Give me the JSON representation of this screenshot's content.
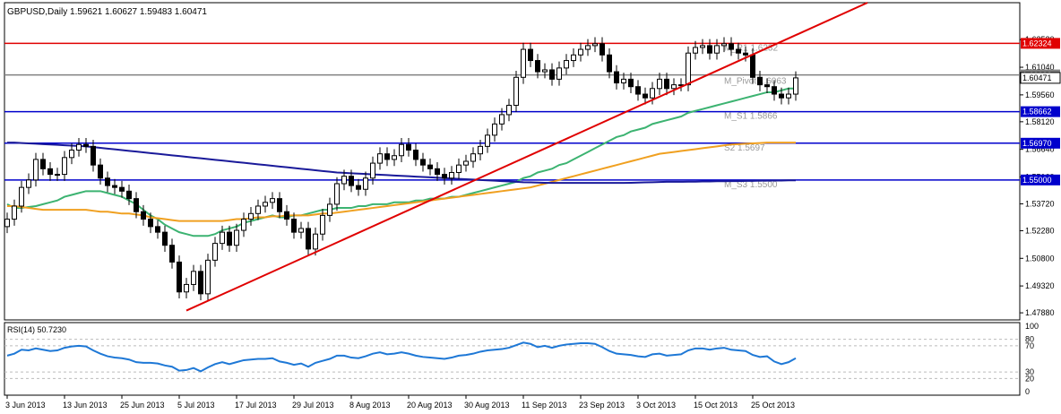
{
  "chart_data": {
    "type": "candlestick",
    "header": {
      "symbol": "GBPUSD,Daily",
      "open": "1.59621",
      "high": "1.60627",
      "low": "1.59483",
      "close": "1.60471"
    },
    "colors": {
      "bull_body": "#ffffff",
      "bear_body": "#000000",
      "wick": "#000000",
      "ma_green": "#3cb371",
      "ma_orange": "#f0a020",
      "ma_navy": "#1a1a9a",
      "trendline": "#e00000",
      "resistance": "#e00000",
      "support": "#0000cc",
      "pivot": "#808080",
      "rsi": "#1e78d6",
      "price_label_blue": "#0000cc",
      "price_label_red": "#e00000",
      "price_label_gray": "#808080"
    },
    "price_axis": {
      "ylim": [
        1.475,
        1.645
      ],
      "ticks": [
        "1.62520",
        "1.61040",
        "1.59560",
        "1.58120",
        "1.56640",
        "1.55160",
        "1.53720",
        "1.52280",
        "1.50800",
        "1.49320",
        "1.47880"
      ],
      "tick_values": [
        1.6252,
        1.6104,
        1.5956,
        1.5812,
        1.5664,
        1.5516,
        1.5372,
        1.5228,
        1.508,
        1.4932,
        1.4788
      ]
    },
    "date_labels": [
      {
        "label": "3 Jun 2013",
        "bar": 0
      },
      {
        "label": "13 Jun 2013",
        "bar": 8
      },
      {
        "label": "25 Jun 2013",
        "bar": 16
      },
      {
        "label": "5 Jul 2013",
        "bar": 24
      },
      {
        "label": "17 Jul 2013",
        "bar": 32
      },
      {
        "label": "29 Jul 2013",
        "bar": 40
      },
      {
        "label": "8 Aug 2013",
        "bar": 48
      },
      {
        "label": "20 Aug 2013",
        "bar": 56
      },
      {
        "label": "30 Aug 2013",
        "bar": 64
      },
      {
        "label": "11 Sep 2013",
        "bar": 72
      },
      {
        "label": "23 Sep 2013",
        "bar": 80
      },
      {
        "label": "3 Oct 2013",
        "bar": 88
      },
      {
        "label": "15 Oct 2013",
        "bar": 96
      },
      {
        "label": "25 Oct 2013",
        "bar": 104
      }
    ],
    "bar_count": 111,
    "closes": [
      1.529,
      1.536,
      1.546,
      1.55,
      1.561,
      1.556,
      1.553,
      1.553,
      1.562,
      1.566,
      1.569,
      1.568,
      1.558,
      1.551,
      1.547,
      1.546,
      1.544,
      1.54,
      1.533,
      1.529,
      1.525,
      1.522,
      1.515,
      1.506,
      1.49,
      1.494,
      1.501,
      1.489,
      1.507,
      1.516,
      1.522,
      1.515,
      1.523,
      1.529,
      1.532,
      1.536,
      1.538,
      1.54,
      1.533,
      1.529,
      1.522,
      1.524,
      1.513,
      1.521,
      1.531,
      1.537,
      1.548,
      1.552,
      1.547,
      1.545,
      1.551,
      1.559,
      1.564,
      1.561,
      1.563,
      1.569,
      1.566,
      1.561,
      1.558,
      1.556,
      1.553,
      1.551,
      1.554,
      1.558,
      1.56,
      1.564,
      1.568,
      1.574,
      1.58,
      1.585,
      1.59,
      1.605,
      1.62,
      1.614,
      1.608,
      1.609,
      1.604,
      1.61,
      1.614,
      1.617,
      1.62,
      1.622,
      1.623,
      1.617,
      1.608,
      1.602,
      1.604,
      1.6,
      1.596,
      1.594,
      1.599,
      1.604,
      1.599,
      1.601,
      1.601,
      1.618,
      1.621,
      1.622,
      1.618,
      1.622,
      1.623,
      1.62,
      1.618,
      1.617,
      1.605,
      1.601,
      1.6,
      1.596,
      1.594,
      1.596,
      1.6047
    ],
    "horizontal_lines": [
      {
        "value": 1.6232,
        "color": "resistance",
        "label": "1.62324",
        "level_text": "M_R1 1.6232"
      },
      {
        "value": 1.6063,
        "color": "pivot",
        "label": "1.60632",
        "level_text": "M_Pivot 1.6063"
      },
      {
        "value": 1.5866,
        "color": "support",
        "label": "1.58662",
        "level_text": "M_S1 1.5866"
      },
      {
        "value": 1.5697,
        "color": "support",
        "label": "1.56970",
        "level_text": "S2 1.5697"
      },
      {
        "value": 1.55,
        "color": "support",
        "label": "1.55000",
        "level_text": "M_S3 1.5500"
      }
    ],
    "current_price_label": "1.60471",
    "trendline": {
      "from_bar": 25,
      "from_value": 1.48,
      "to_bar": 120,
      "to_value": 1.645
    },
    "moving_averages": [
      {
        "color": "ma_green",
        "values": [
          1.537,
          1.535,
          1.535,
          1.5355,
          1.536,
          1.537,
          1.538,
          1.539,
          1.541,
          1.542,
          1.543,
          1.544,
          1.544,
          1.544,
          1.543,
          1.542,
          1.541,
          1.539,
          1.537,
          1.534,
          1.531,
          1.529,
          1.526,
          1.524,
          1.522,
          1.521,
          1.52,
          1.52,
          1.52,
          1.521,
          1.523,
          1.524,
          1.525,
          1.527,
          1.528,
          1.529,
          1.53,
          1.531,
          1.53,
          1.53,
          1.531,
          1.531,
          1.532,
          1.533,
          1.534,
          1.534,
          1.535,
          1.535,
          1.535,
          1.536,
          1.536,
          1.537,
          1.537,
          1.537,
          1.538,
          1.538,
          1.538,
          1.539,
          1.539,
          1.54,
          1.54,
          1.54,
          1.541,
          1.541,
          1.542,
          1.543,
          1.544,
          1.545,
          1.546,
          1.547,
          1.548,
          1.549,
          1.551,
          1.552,
          1.554,
          1.555,
          1.556,
          1.558,
          1.559,
          1.561,
          1.563,
          1.565,
          1.567,
          1.569,
          1.571,
          1.573,
          1.574,
          1.576,
          1.577,
          1.578,
          1.58,
          1.581,
          1.582,
          1.583,
          1.584,
          1.586,
          1.587,
          1.588,
          1.589,
          1.59,
          1.591,
          1.592,
          1.593,
          1.594,
          1.595,
          1.596,
          1.597,
          1.597,
          1.598,
          1.599,
          1.599
        ]
      },
      {
        "color": "ma_orange",
        "values": [
          1.536,
          1.536,
          1.5355,
          1.535,
          1.5345,
          1.534,
          1.534,
          1.534,
          1.534,
          1.534,
          1.534,
          1.534,
          1.5335,
          1.533,
          1.533,
          1.5325,
          1.532,
          1.532,
          1.5315,
          1.531,
          1.53,
          1.5295,
          1.529,
          1.5285,
          1.528,
          1.528,
          1.528,
          1.528,
          1.528,
          1.528,
          1.528,
          1.5285,
          1.529,
          1.529,
          1.5295,
          1.53,
          1.53,
          1.5305,
          1.5305,
          1.531,
          1.531,
          1.531,
          1.531,
          1.5315,
          1.532,
          1.532,
          1.5325,
          1.533,
          1.5335,
          1.534,
          1.5345,
          1.535,
          1.5355,
          1.536,
          1.5365,
          1.537,
          1.5375,
          1.538,
          1.5385,
          1.539,
          1.5395,
          1.54,
          1.5405,
          1.541,
          1.5415,
          1.542,
          1.5425,
          1.543,
          1.5435,
          1.544,
          1.5445,
          1.545,
          1.5455,
          1.546,
          1.547,
          1.548,
          1.549,
          1.55,
          1.551,
          1.552,
          1.553,
          1.554,
          1.555,
          1.556,
          1.557,
          1.558,
          1.559,
          1.56,
          1.561,
          1.562,
          1.563,
          1.564,
          1.5645,
          1.565,
          1.5655,
          1.566,
          1.5665,
          1.567,
          1.5675,
          1.568,
          1.5685,
          1.569,
          1.5692,
          1.5694,
          1.5696,
          1.5698,
          1.57,
          1.57,
          1.57,
          1.57,
          1.57
        ]
      },
      {
        "color": "ma_navy",
        "values": [
          1.57,
          1.57,
          1.5698,
          1.5696,
          1.5694,
          1.5692,
          1.569,
          1.5688,
          1.5686,
          1.5684,
          1.5682,
          1.568,
          1.5676,
          1.5672,
          1.5668,
          1.5664,
          1.566,
          1.5656,
          1.5652,
          1.5648,
          1.5644,
          1.564,
          1.5636,
          1.5632,
          1.5628,
          1.5624,
          1.562,
          1.5616,
          1.5612,
          1.5608,
          1.5604,
          1.56,
          1.5596,
          1.5592,
          1.5588,
          1.5584,
          1.558,
          1.5576,
          1.5572,
          1.5568,
          1.5564,
          1.556,
          1.5556,
          1.5552,
          1.5548,
          1.5544,
          1.554,
          1.5538,
          1.5536,
          1.5534,
          1.5532,
          1.553,
          1.5528,
          1.5526,
          1.5524,
          1.5522,
          1.552,
          1.5518,
          1.5516,
          1.5514,
          1.5512,
          1.551,
          1.5508,
          1.5506,
          1.5504,
          1.5502,
          1.55,
          1.5498,
          1.5496,
          1.5494,
          1.5492,
          1.549,
          1.5488,
          1.5487,
          1.5486,
          1.5485,
          1.5484,
          1.5484,
          1.5484,
          1.5484,
          1.5484,
          1.5484,
          1.5484,
          1.5484,
          1.5484,
          1.5484,
          1.5484,
          1.5485,
          1.5486,
          1.5487,
          1.5488,
          1.5489,
          1.549,
          1.549,
          1.549,
          1.5491,
          1.5491,
          1.5492,
          1.5492,
          1.5493,
          1.5493,
          1.5494,
          1.5494,
          1.5495,
          1.5495,
          1.5496,
          1.5496,
          1.5497,
          1.5497,
          1.5498,
          1.5498
        ]
      }
    ],
    "rsi": {
      "title": "RSI(14) 50.7230",
      "ylim": [
        0,
        100
      ],
      "ticks": [
        {
          "label": "100",
          "value": 100
        },
        {
          "label": "80",
          "value": 80
        },
        {
          "label": "70",
          "value": 70
        },
        {
          "label": "30",
          "value": 30
        },
        {
          "label": "20",
          "value": 20
        },
        {
          "label": "0",
          "value": 0
        }
      ],
      "values": [
        55,
        58,
        64,
        63,
        66,
        64,
        62,
        63,
        67,
        69,
        70,
        69,
        63,
        58,
        54,
        52,
        51,
        49,
        45,
        44,
        44,
        43,
        40,
        38,
        32,
        33,
        36,
        31,
        37,
        42,
        45,
        42,
        45,
        48,
        49,
        50,
        50,
        51,
        46,
        44,
        41,
        43,
        38,
        44,
        47,
        50,
        55,
        55,
        52,
        51,
        54,
        58,
        60,
        57,
        58,
        60,
        58,
        55,
        53,
        52,
        51,
        50,
        52,
        55,
        56,
        58,
        61,
        63,
        64,
        65,
        67,
        71,
        75,
        73,
        68,
        70,
        67,
        70,
        72,
        73,
        74,
        74,
        73,
        68,
        62,
        58,
        57,
        56,
        54,
        53,
        57,
        58,
        55,
        56,
        57,
        63,
        66,
        66,
        64,
        66,
        67,
        64,
        63,
        62,
        56,
        53,
        54,
        46,
        42,
        45,
        51
      ]
    }
  }
}
